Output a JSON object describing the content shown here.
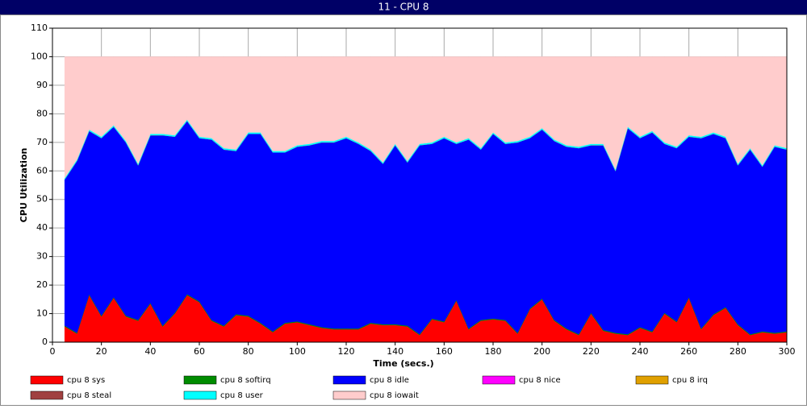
{
  "chart_data": {
    "type": "stacked_area",
    "title": "11 - CPU 8",
    "xlabel": "Time (secs.)",
    "ylabel": "CPU Utilization",
    "x": [
      5,
      10,
      15,
      20,
      25,
      30,
      35,
      40,
      45,
      50,
      55,
      60,
      65,
      70,
      75,
      80,
      85,
      90,
      95,
      100,
      105,
      110,
      115,
      120,
      125,
      130,
      135,
      140,
      145,
      150,
      155,
      160,
      165,
      170,
      175,
      180,
      185,
      190,
      195,
      200,
      205,
      210,
      215,
      220,
      225,
      230,
      235,
      240,
      245,
      250,
      255,
      260,
      265,
      270,
      275,
      280,
      285,
      290,
      295,
      300
    ],
    "xlim": [
      0,
      300
    ],
    "xticks": [
      0,
      20,
      40,
      60,
      80,
      100,
      120,
      140,
      160,
      180,
      200,
      220,
      240,
      260,
      280,
      300
    ],
    "ylim": [
      0,
      110
    ],
    "yticks": [
      0,
      10,
      20,
      30,
      40,
      50,
      60,
      70,
      80,
      90,
      100,
      110
    ],
    "grid": true,
    "series": [
      {
        "name": "cpu 8 sys",
        "color": "#ff0000",
        "values": [
          5.5,
          3,
          16.5,
          9,
          15.5,
          9,
          7.5,
          13.5,
          5.5,
          10,
          16.5,
          14,
          7.5,
          5.5,
          9.5,
          9,
          6.5,
          3.5,
          6.5,
          7,
          6,
          5,
          4.5,
          4.5,
          4.5,
          6.5,
          6,
          6,
          5.5,
          2.5,
          8,
          7,
          14.5,
          4.5,
          7.5,
          8,
          7.5,
          3,
          11.5,
          15,
          7.5,
          4.5,
          2.5,
          10,
          4,
          3,
          2.5,
          5,
          3.5,
          10,
          7,
          15.5,
          4.5,
          9.5,
          12,
          6,
          2.5,
          3.5,
          3,
          3.5
        ]
      },
      {
        "name": "cpu 8 softirq",
        "color": "#008c00",
        "values": [
          0.3,
          0.3,
          0.3,
          0.3,
          0.3,
          0.3,
          0.3,
          0.3,
          0.3,
          0.3,
          0.3,
          0.3,
          0.3,
          0.3,
          0.3,
          0.3,
          0.3,
          0.3,
          0.3,
          0.3,
          0.3,
          0.3,
          0.3,
          0.3,
          0.3,
          0.3,
          0.3,
          0.3,
          0.3,
          0.3,
          0.3,
          0.3,
          0.3,
          0.3,
          0.3,
          0.3,
          0.3,
          0.3,
          0.3,
          0.3,
          0.3,
          0.3,
          0.3,
          0.3,
          0.3,
          0.3,
          0.3,
          0.3,
          0.3,
          0.3,
          0.3,
          0.3,
          0.3,
          0.3,
          0.3,
          0.3,
          0.3,
          0.3,
          0.3,
          0.3
        ]
      },
      {
        "name": "cpu 8 idle",
        "color": "#0000ff",
        "values": [
          51.2,
          60.2,
          57.2,
          62.2,
          59.7,
          60.7,
          54.2,
          58.7,
          66.7,
          61.7,
          60.7,
          57.2,
          63.2,
          61.7,
          57.2,
          63.7,
          66.2,
          62.7,
          59.7,
          61.2,
          62.7,
          64.7,
          65.2,
          66.7,
          64.7,
          60.2,
          56.2,
          62.7,
          57.2,
          66.2,
          61.2,
          64.2,
          54.7,
          66.2,
          59.7,
          64.7,
          61.7,
          66.7,
          59.7,
          59.2,
          62.7,
          63.7,
          65.2,
          58.7,
          64.7,
          56.7,
          72.2,
          66.2,
          69.7,
          59.2,
          60.7,
          56.2,
          66.7,
          63.2,
          59.2,
          55.7,
          64.7,
          57.7,
          65.2,
          63.7
        ]
      },
      {
        "name": "cpu 8 nice",
        "color": "#ff00ff",
        "values": [
          0,
          0,
          0,
          0,
          0,
          0,
          0,
          0,
          0,
          0,
          0,
          0,
          0,
          0,
          0,
          0,
          0,
          0,
          0,
          0,
          0,
          0,
          0,
          0,
          0,
          0,
          0,
          0,
          0,
          0,
          0,
          0,
          0,
          0,
          0,
          0,
          0,
          0,
          0,
          0,
          0,
          0,
          0,
          0,
          0,
          0,
          0,
          0,
          0,
          0,
          0,
          0,
          0,
          0,
          0,
          0,
          0,
          0,
          0,
          0
        ]
      },
      {
        "name": "cpu 8 irq",
        "color": "#e0a000",
        "values": [
          0,
          0,
          0,
          0,
          0,
          0,
          0,
          0,
          0,
          0,
          0,
          0,
          0,
          0,
          0,
          0,
          0,
          0,
          0,
          0,
          0,
          0,
          0,
          0,
          0,
          0,
          0,
          0,
          0,
          0,
          0,
          0,
          0,
          0,
          0,
          0,
          0,
          0,
          0,
          0,
          0,
          0,
          0,
          0,
          0,
          0,
          0,
          0,
          0,
          0,
          0,
          0,
          0,
          0,
          0,
          0,
          0,
          0,
          0,
          0
        ]
      },
      {
        "name": "cpu 8 steal",
        "color": "#a04040",
        "values": [
          0,
          0,
          0,
          0,
          0,
          0,
          0,
          0,
          0,
          0,
          0,
          0,
          0,
          0,
          0,
          0,
          0,
          0,
          0,
          0,
          0,
          0,
          0,
          0,
          0,
          0,
          0,
          0,
          0,
          0,
          0,
          0,
          0,
          0,
          0,
          0,
          0,
          0,
          0,
          0,
          0,
          0,
          0,
          0,
          0,
          0,
          0,
          0,
          0,
          0,
          0,
          0,
          0,
          0,
          0,
          0,
          0,
          0,
          0,
          0
        ]
      },
      {
        "name": "cpu 8 user",
        "color": "#00ffff",
        "values": [
          0.5,
          0.5,
          0.5,
          0.5,
          0.5,
          0.5,
          0.5,
          0.5,
          0.5,
          0.5,
          0.5,
          0.5,
          0.5,
          0.5,
          0.5,
          0.5,
          0.5,
          0.5,
          0.5,
          0.5,
          0.5,
          0.5,
          0.5,
          0.5,
          0.5,
          0.5,
          0.5,
          0.5,
          0.5,
          0.5,
          0.5,
          0.5,
          0.5,
          0.5,
          0.5,
          0.5,
          0.5,
          0.5,
          0.5,
          0.5,
          0.5,
          0.5,
          0.5,
          0.5,
          0.5,
          0.5,
          0.5,
          0.5,
          0.5,
          0.5,
          0.5,
          0.5,
          0.5,
          0.5,
          0.5,
          0.5,
          0.5,
          0.5,
          0.5,
          0.5
        ]
      },
      {
        "name": "cpu 8 iowait",
        "color": "#ffcccc",
        "values": [
          42.5,
          36,
          25.5,
          28,
          24,
          29.5,
          37.5,
          27,
          27,
          27.5,
          22,
          28,
          28.5,
          32,
          32.5,
          26.5,
          26.5,
          33,
          33,
          31,
          30.5,
          29.5,
          29.5,
          28,
          30,
          32.5,
          37,
          30.5,
          36.5,
          30.5,
          30,
          28,
          30,
          28.5,
          32,
          26.5,
          30,
          29.5,
          28,
          25,
          29,
          31,
          31.5,
          30.5,
          30.5,
          39.5,
          24.5,
          28,
          26,
          30,
          31.5,
          27.5,
          28,
          26.5,
          28,
          37.5,
          32,
          38,
          31,
          32
        ]
      }
    ]
  }
}
